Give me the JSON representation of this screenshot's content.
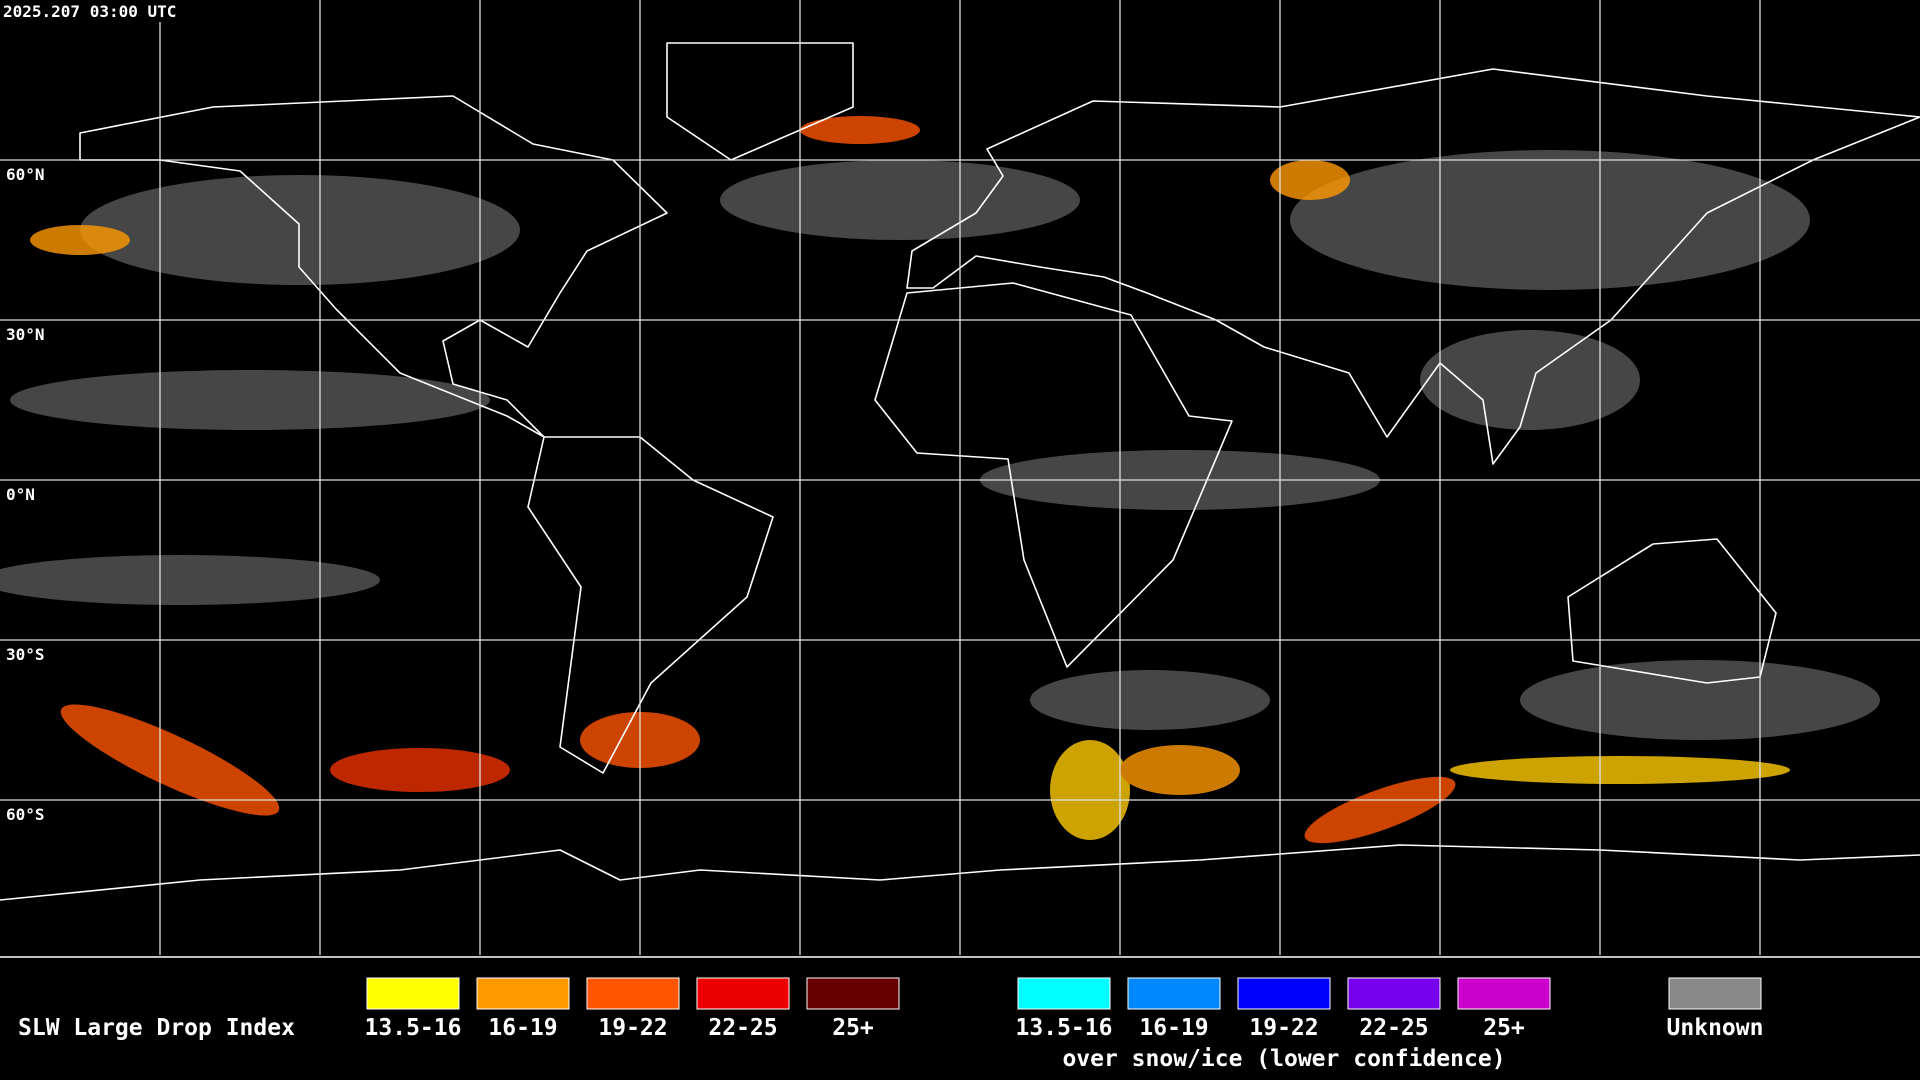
{
  "header": {
    "timestamp": "2025.207 03:00 UTC"
  },
  "map": {
    "latitude_labels": [
      "60°N",
      "30°N",
      "0°N",
      "30°S",
      "60°S"
    ]
  },
  "legend": {
    "title": "SLW Large Drop Index",
    "groups": [
      {
        "items": [
          {
            "label": "13.5-16",
            "color": "#ffff00"
          },
          {
            "label": "16-19",
            "color": "#ff9900"
          },
          {
            "label": "19-22",
            "color": "#ff5500"
          },
          {
            "label": "22-25",
            "color": "#ee0000"
          },
          {
            "label": "25+",
            "color": "#660000"
          }
        ]
      },
      {
        "items": [
          {
            "label": "13.5-16",
            "color": "#00ffff"
          },
          {
            "label": "16-19",
            "color": "#0088ff"
          },
          {
            "label": "19-22",
            "color": "#0000ff"
          },
          {
            "label": "22-25",
            "color": "#7700ee"
          },
          {
            "label": "25+",
            "color": "#cc00cc"
          }
        ],
        "caption": "over snow/ice (lower confidence)"
      },
      {
        "items": [
          {
            "label": "Unknown",
            "color": "#888888"
          }
        ]
      }
    ]
  }
}
